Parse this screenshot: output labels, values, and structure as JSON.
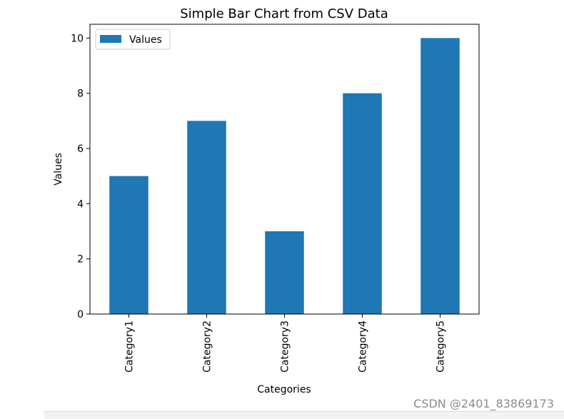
{
  "chart_data": {
    "type": "bar",
    "title": "Simple Bar Chart from CSV Data",
    "xlabel": "Categories",
    "ylabel": "Values",
    "categories": [
      "Category1",
      "Category2",
      "Category3",
      "Category4",
      "Category5"
    ],
    "series": [
      {
        "name": "Values",
        "values": [
          5,
          7,
          3,
          8,
          10
        ]
      }
    ],
    "yticks": [
      0,
      2,
      4,
      6,
      8,
      10
    ],
    "ylim": [
      0,
      10.5
    ],
    "grid": false,
    "legend_position": "top-left",
    "colors": {
      "bar": "#1f77b4",
      "axis": "#000000",
      "text": "#000000"
    }
  },
  "watermark": "CSDN @2401_83869173"
}
